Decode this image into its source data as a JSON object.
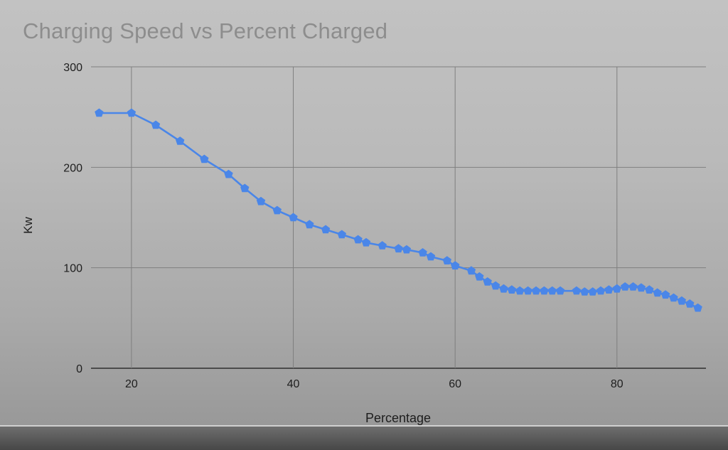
{
  "chart_data": {
    "type": "line",
    "title": "Charging Speed vs Percent Charged",
    "xlabel": "Percentage",
    "ylabel": "Kw",
    "xlim": [
      15,
      91
    ],
    "ylim": [
      0,
      300
    ],
    "xticks": [
      20,
      40,
      60,
      80
    ],
    "yticks": [
      0,
      100,
      200,
      300
    ],
    "grid": true,
    "legend": "none",
    "line_color": "#4a86e8",
    "series": [
      {
        "x": [
          16,
          20,
          23,
          26,
          29,
          32,
          34,
          36,
          38,
          40,
          42,
          44,
          46,
          48,
          49,
          51,
          53,
          54,
          56,
          57,
          59,
          60,
          62,
          63,
          64,
          65,
          66,
          67,
          68,
          69,
          70,
          71,
          72,
          73,
          75,
          76,
          77,
          78,
          79,
          80,
          81,
          82,
          83,
          84,
          85,
          86,
          87,
          88,
          89,
          90
        ],
        "values": [
          254,
          254,
          242,
          226,
          208,
          193,
          179,
          166,
          157,
          150,
          143,
          138,
          133,
          128,
          125,
          122,
          119,
          118,
          115,
          111,
          107,
          102,
          97,
          91,
          86,
          82,
          79,
          78,
          77,
          77,
          77,
          77,
          77,
          77,
          77,
          76,
          76,
          77,
          78,
          79,
          81,
          81,
          80,
          78,
          75,
          73,
          70,
          67,
          64,
          60
        ]
      }
    ]
  }
}
